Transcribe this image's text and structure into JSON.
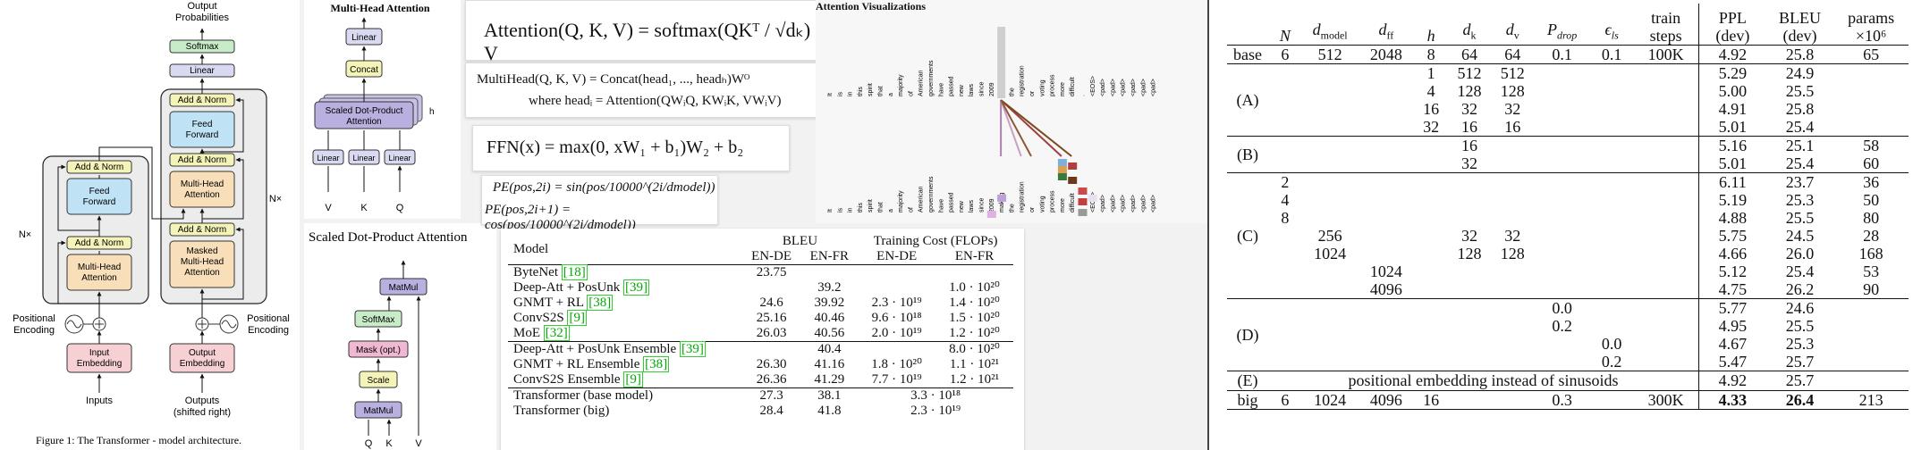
{
  "arch": {
    "output_probabilities": "Output\nProbabilities",
    "softmax": "Softmax",
    "linear": "Linear",
    "add_norm": "Add & Norm",
    "feed_forward": "Feed\nForward",
    "multi_head_attention": "Multi-Head\nAttention",
    "masked_mha": "Masked\nMulti-Head\nAttention",
    "nx": "N×",
    "positional_encoding": "Positional\nEncoding",
    "input_embedding": "Input\nEmbedding",
    "output_embedding": "Output\nEmbedding",
    "inputs": "Inputs",
    "outputs": "Outputs\n(shifted right)",
    "caption": "Figure 1: The Transformer - model architecture."
  },
  "mha": {
    "title": "Multi-Head Attention",
    "linear": "Linear",
    "concat": "Concat",
    "sdpa": "Scaled Dot-Product\nAttention",
    "h": "h",
    "v": "V",
    "k": "K",
    "q": "Q"
  },
  "sdpa": {
    "title": "Scaled Dot-Product Attention",
    "matmul": "MatMul",
    "softmax": "SoftMax",
    "mask": "Mask (opt.)",
    "scale": "Scale",
    "q": "Q",
    "k": "K",
    "v": "V"
  },
  "formulas": {
    "attention": "Attention(Q, K, V) = softmax(QKᵀ / √dₖ) V",
    "multihead": "MultiHead(Q, K, V) = Concat(head₁, ..., headₕ)Wᴼ",
    "head_i": "where headᵢ = Attention(QWᵢQ, KWᵢK, VWᵢV)",
    "ffn": "FFN(x) = max(0, xW₁ + b₁)W₂ + b₂",
    "pe_sin": "PE(pos,2i) = sin(pos/10000^(2i/dmodel))",
    "pe_cos": "PE(pos,2i+1) = cos(pos/10000^(2i/dmodel))"
  },
  "attn_vis": {
    "title": "Attention Visualizations",
    "tokens": [
      "It",
      "is",
      "in",
      "this",
      "spirit",
      "that",
      "a",
      "majority",
      "of",
      "American",
      "governments",
      "have",
      "passed",
      "new",
      "laws",
      "since",
      "2009",
      "making",
      "the",
      "registration",
      "or",
      "voting",
      "process",
      "more",
      "difficult",
      ".",
      "<EOS>",
      "<pad>",
      "<pad>",
      "<pad>",
      "<pad>",
      "<pad>",
      "<pad>"
    ]
  },
  "bleu_table": {
    "headers": {
      "model": "Model",
      "bleu": "BLEU",
      "cost": "Training Cost (FLOPs)",
      "en_de": "EN-DE",
      "en_fr": "EN-FR"
    },
    "groups": [
      [
        {
          "model": "ByteNet",
          "ref": "[18]",
          "bleu_de": "23.75",
          "bleu_fr": "",
          "cost_de": "",
          "cost_fr": ""
        },
        {
          "model": "Deep-Att + PosUnk",
          "ref": "[39]",
          "bleu_de": "",
          "bleu_fr": "39.2",
          "cost_de": "",
          "cost_fr": "1.0 · 10²⁰"
        },
        {
          "model": "GNMT + RL",
          "ref": "[38]",
          "bleu_de": "24.6",
          "bleu_fr": "39.92",
          "cost_de": "2.3 · 10¹⁹",
          "cost_fr": "1.4 · 10²⁰"
        },
        {
          "model": "ConvS2S",
          "ref": "[9]",
          "bleu_de": "25.16",
          "bleu_fr": "40.46",
          "cost_de": "9.6 · 10¹⁸",
          "cost_fr": "1.5 · 10²⁰"
        },
        {
          "model": "MoE",
          "ref": "[32]",
          "bleu_de": "26.03",
          "bleu_fr": "40.56",
          "cost_de": "2.0 · 10¹⁹",
          "cost_fr": "1.2 · 10²⁰"
        }
      ],
      [
        {
          "model": "Deep-Att + PosUnk Ensemble",
          "ref": "[39]",
          "bleu_de": "",
          "bleu_fr": "40.4",
          "cost_de": "",
          "cost_fr": "8.0 · 10²⁰"
        },
        {
          "model": "GNMT + RL Ensemble",
          "ref": "[38]",
          "bleu_de": "26.30",
          "bleu_fr": "41.16",
          "cost_de": "1.8 · 10²⁰",
          "cost_fr": "1.1 · 10²¹"
        },
        {
          "model": "ConvS2S Ensemble",
          "ref": "[9]",
          "bleu_de": "26.36",
          "bleu_fr": "41.29",
          "cost_de": "7.7 · 10¹⁹",
          "cost_fr": "1.2 · 10²¹",
          "bold_fr": true
        }
      ]
    ],
    "transformer_base": {
      "model": "Transformer (base model)",
      "bleu_de": "27.3",
      "bleu_fr": "38.1",
      "cost": "3.3 · 10¹⁸"
    },
    "transformer_big": {
      "model": "Transformer (big)",
      "bleu_de": "28.4",
      "bleu_fr": "41.8",
      "cost": "2.3 · 10¹⁹"
    }
  },
  "variation_table": {
    "headers": {
      "n": "N",
      "d_model": "d",
      "d_model_sub": "model",
      "d_ff": "d",
      "d_ff_sub": "ff",
      "h": "h",
      "d_k": "d",
      "d_k_sub": "k",
      "d_v": "d",
      "d_v_sub": "v",
      "p_drop": "P",
      "p_drop_sub": "drop",
      "eps_ls": "ϵ",
      "eps_ls_sub": "ls",
      "train_steps": "train\nsteps",
      "ppl": "PPL\n(dev)",
      "bleu": "BLEU\n(dev)",
      "params": "params\n×10⁶"
    },
    "base": {
      "label": "base",
      "cells": [
        "6",
        "512",
        "2048",
        "8",
        "64",
        "64",
        "0.1",
        "0.1",
        "100K",
        "4.92",
        "25.8",
        "65"
      ]
    },
    "groups": [
      {
        "label": "(A)",
        "rows": [
          [
            "",
            "",
            "",
            "1",
            "512",
            "512",
            "",
            "",
            "",
            "5.29",
            "24.9",
            ""
          ],
          [
            "",
            "",
            "",
            "4",
            "128",
            "128",
            "",
            "",
            "",
            "5.00",
            "25.5",
            ""
          ],
          [
            "",
            "",
            "",
            "16",
            "32",
            "32",
            "",
            "",
            "",
            "4.91",
            "25.8",
            ""
          ],
          [
            "",
            "",
            "",
            "32",
            "16",
            "16",
            "",
            "",
            "",
            "5.01",
            "25.4",
            ""
          ]
        ]
      },
      {
        "label": "(B)",
        "rows": [
          [
            "",
            "",
            "",
            "",
            "16",
            "",
            "",
            "",
            "",
            "5.16",
            "25.1",
            "58"
          ],
          [
            "",
            "",
            "",
            "",
            "32",
            "",
            "",
            "",
            "",
            "5.01",
            "25.4",
            "60"
          ]
        ]
      },
      {
        "label": "(C)",
        "rows": [
          [
            "2",
            "",
            "",
            "",
            "",
            "",
            "",
            "",
            "",
            "6.11",
            "23.7",
            "36"
          ],
          [
            "4",
            "",
            "",
            "",
            "",
            "",
            "",
            "",
            "",
            "5.19",
            "25.3",
            "50"
          ],
          [
            "8",
            "",
            "",
            "",
            "",
            "",
            "",
            "",
            "",
            "4.88",
            "25.5",
            "80"
          ],
          [
            "",
            "256",
            "",
            "",
            "32",
            "32",
            "",
            "",
            "",
            "5.75",
            "24.5",
            "28"
          ],
          [
            "",
            "1024",
            "",
            "",
            "128",
            "128",
            "",
            "",
            "",
            "4.66",
            "26.0",
            "168"
          ],
          [
            "",
            "",
            "1024",
            "",
            "",
            "",
            "",
            "",
            "",
            "5.12",
            "25.4",
            "53"
          ],
          [
            "",
            "",
            "4096",
            "",
            "",
            "",
            "",
            "",
            "",
            "4.75",
            "26.2",
            "90"
          ]
        ]
      },
      {
        "label": "(D)",
        "rows": [
          [
            "",
            "",
            "",
            "",
            "",
            "",
            "0.0",
            "",
            "",
            "5.77",
            "24.6",
            ""
          ],
          [
            "",
            "",
            "",
            "",
            "",
            "",
            "0.2",
            "",
            "",
            "4.95",
            "25.5",
            ""
          ],
          [
            "",
            "",
            "",
            "",
            "",
            "",
            "",
            "0.0",
            "",
            "4.67",
            "25.3",
            ""
          ],
          [
            "",
            "",
            "",
            "",
            "",
            "",
            "",
            "0.2",
            "",
            "5.47",
            "25.7",
            ""
          ]
        ]
      }
    ],
    "e_row": {
      "label": "(E)",
      "text": "positional embedding instead of sinusoids",
      "ppl": "4.92",
      "bleu": "25.7"
    },
    "big": {
      "label": "big",
      "cells": [
        "6",
        "1024",
        "4096",
        "16",
        "",
        "",
        "0.3",
        "",
        "300K",
        "4.33",
        "26.4",
        "213"
      ]
    }
  }
}
